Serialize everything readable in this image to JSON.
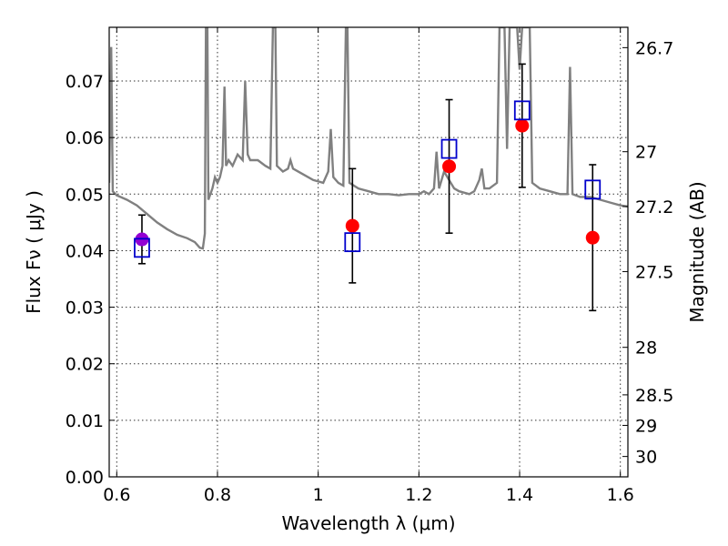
{
  "chart_data": {
    "type": "scatter",
    "title": "",
    "xlabel": "Wavelength  λ (μm)",
    "ylabel": "Flux  Fν  ( μJy )",
    "y2label": "Magnitude (AB)",
    "xlim": [
      0.585,
      1.615
    ],
    "ylim": [
      0.0,
      0.0795
    ],
    "grid": true,
    "x_ticks": [
      0.6,
      0.8,
      1.0,
      1.2,
      1.4,
      1.6
    ],
    "x_tick_labels": [
      "0.6",
      "0.8",
      "1",
      "1.2",
      "1.4",
      "1.6"
    ],
    "y_ticks": [
      0.0,
      0.01,
      0.02,
      0.03,
      0.04,
      0.05,
      0.06,
      0.07
    ],
    "y_tick_labels": [
      "0.00",
      "0.01",
      "0.02",
      "0.03",
      "0.04",
      "0.05",
      "0.06",
      "0.07"
    ],
    "right_axis_ticks": [
      {
        "label": "26.7",
        "flux": 0.0759
      },
      {
        "label": "27",
        "flux": 0.0575
      },
      {
        "label": "27.2",
        "flux": 0.0478
      },
      {
        "label": "27.5",
        "flux": 0.0363
      },
      {
        "label": "28",
        "flux": 0.0229
      },
      {
        "label": "28.5",
        "flux": 0.0145
      },
      {
        "label": "29",
        "flux": 0.0091
      },
      {
        "label": "30",
        "flux": 0.0036
      }
    ],
    "colors": {
      "model": "#808080",
      "observed": "#ff0000",
      "observed_first": "#9400d3",
      "model_photometry": "#0000cc",
      "errorbar": "#000000"
    },
    "series": [
      {
        "kind": "line",
        "points": [
          [
            0.585,
            0.052
          ],
          [
            0.589,
            0.076
          ],
          [
            0.592,
            0.0505
          ],
          [
            0.6,
            0.0498
          ],
          [
            0.62,
            0.049
          ],
          [
            0.64,
            0.048
          ],
          [
            0.66,
            0.0465
          ],
          [
            0.68,
            0.045
          ],
          [
            0.7,
            0.0438
          ],
          [
            0.72,
            0.0428
          ],
          [
            0.74,
            0.0422
          ],
          [
            0.755,
            0.0415
          ],
          [
            0.765,
            0.0405
          ],
          [
            0.771,
            0.0404
          ],
          [
            0.775,
            0.043
          ],
          [
            0.777,
            0.0795
          ],
          [
            0.78,
            0.0795
          ],
          [
            0.782,
            0.049
          ],
          [
            0.79,
            0.051
          ],
          [
            0.795,
            0.053
          ],
          [
            0.8,
            0.052
          ],
          [
            0.805,
            0.053
          ],
          [
            0.81,
            0.055
          ],
          [
            0.814,
            0.069
          ],
          [
            0.817,
            0.055
          ],
          [
            0.822,
            0.056
          ],
          [
            0.83,
            0.055
          ],
          [
            0.84,
            0.057
          ],
          [
            0.85,
            0.056
          ],
          [
            0.855,
            0.07
          ],
          [
            0.86,
            0.057
          ],
          [
            0.865,
            0.056
          ],
          [
            0.88,
            0.056
          ],
          [
            0.895,
            0.055
          ],
          [
            0.905,
            0.0545
          ],
          [
            0.91,
            0.0795
          ],
          [
            0.915,
            0.0795
          ],
          [
            0.918,
            0.055
          ],
          [
            0.93,
            0.054
          ],
          [
            0.94,
            0.0545
          ],
          [
            0.945,
            0.056
          ],
          [
            0.95,
            0.0545
          ],
          [
            0.97,
            0.0535
          ],
          [
            0.99,
            0.0525
          ],
          [
            1.01,
            0.052
          ],
          [
            1.02,
            0.054
          ],
          [
            1.025,
            0.0615
          ],
          [
            1.03,
            0.053
          ],
          [
            1.04,
            0.052
          ],
          [
            1.05,
            0.0515
          ],
          [
            1.055,
            0.0795
          ],
          [
            1.058,
            0.0795
          ],
          [
            1.062,
            0.052
          ],
          [
            1.08,
            0.051
          ],
          [
            1.1,
            0.0505
          ],
          [
            1.12,
            0.05
          ],
          [
            1.14,
            0.05
          ],
          [
            1.16,
            0.0498
          ],
          [
            1.18,
            0.05
          ],
          [
            1.2,
            0.05
          ],
          [
            1.21,
            0.0505
          ],
          [
            1.22,
            0.05
          ],
          [
            1.23,
            0.051
          ],
          [
            1.235,
            0.0575
          ],
          [
            1.24,
            0.051
          ],
          [
            1.25,
            0.054
          ],
          [
            1.26,
            0.0525
          ],
          [
            1.27,
            0.051
          ],
          [
            1.28,
            0.0505
          ],
          [
            1.3,
            0.05
          ],
          [
            1.31,
            0.0505
          ],
          [
            1.32,
            0.0525
          ],
          [
            1.325,
            0.0545
          ],
          [
            1.33,
            0.051
          ],
          [
            1.34,
            0.051
          ],
          [
            1.355,
            0.052
          ],
          [
            1.36,
            0.0795
          ],
          [
            1.37,
            0.0795
          ],
          [
            1.375,
            0.058
          ],
          [
            1.38,
            0.0795
          ],
          [
            1.395,
            0.0795
          ],
          [
            1.4,
            0.072
          ],
          [
            1.405,
            0.0795
          ],
          [
            1.42,
            0.0795
          ],
          [
            1.425,
            0.052
          ],
          [
            1.44,
            0.051
          ],
          [
            1.46,
            0.0505
          ],
          [
            1.48,
            0.05
          ],
          [
            1.495,
            0.05
          ],
          [
            1.5,
            0.0725
          ],
          [
            1.505,
            0.05
          ],
          [
            1.52,
            0.0495
          ],
          [
            1.54,
            0.0495
          ],
          [
            1.56,
            0.049
          ],
          [
            1.58,
            0.0485
          ],
          [
            1.6,
            0.048
          ],
          [
            1.615,
            0.0478
          ]
        ]
      },
      {
        "kind": "errorbar",
        "points": [
          {
            "x": 0.65,
            "y": 0.042,
            "err": 0.0043
          },
          {
            "x": 1.068,
            "y": 0.0444,
            "err": 0.0101
          },
          {
            "x": 1.26,
            "y": 0.0549,
            "err": 0.0118
          },
          {
            "x": 1.405,
            "y": 0.0621,
            "err": 0.0109
          },
          {
            "x": 1.545,
            "y": 0.0423,
            "err": 0.0129
          }
        ]
      },
      {
        "kind": "open-square",
        "points": [
          [
            0.65,
            0.0405
          ],
          [
            1.068,
            0.0415
          ],
          [
            1.26,
            0.058
          ],
          [
            1.405,
            0.0648
          ],
          [
            1.545,
            0.0508
          ]
        ]
      }
    ]
  }
}
